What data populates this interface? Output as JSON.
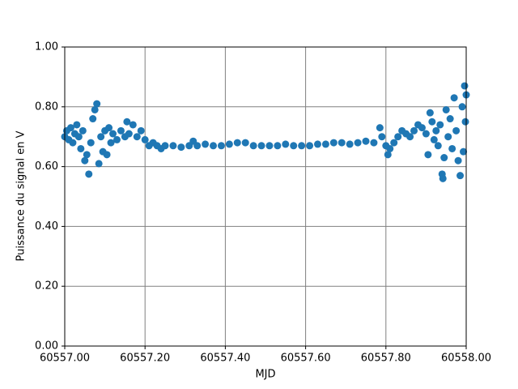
{
  "chart_data": {
    "type": "scatter",
    "xlabel": "MJD",
    "ylabel": "Puissance du signal en V",
    "color": "#1f77b4",
    "grid": true,
    "xlim": [
      60557.0,
      60558.0
    ],
    "xticks": [
      {
        "value": 60557.0,
        "label": "60557.00"
      },
      {
        "value": 60557.2,
        "label": "60557.20"
      },
      {
        "value": 60557.4,
        "label": "60557.40"
      },
      {
        "value": 60557.6,
        "label": "60557.60"
      },
      {
        "value": 60557.8,
        "label": "60557.80"
      },
      {
        "value": 60558.0,
        "label": "60558.00"
      }
    ],
    "ylim": [
      0,
      1
    ],
    "yticks": [
      {
        "value": 0,
        "label": "0.00"
      },
      {
        "value": 0.2,
        "label": "0.20"
      },
      {
        "value": 0.4,
        "label": "0.40"
      },
      {
        "value": 0.6,
        "label": "0.60"
      },
      {
        "value": 0.8,
        "label": "0.80"
      },
      {
        "value": 1,
        "label": "1.00"
      }
    ],
    "x": [
      60557.0,
      60557.005,
      60557.01,
      60557.015,
      60557.02,
      60557.025,
      60557.03,
      60557.035,
      60557.04,
      60557.045,
      60557.05,
      60557.055,
      60557.06,
      60557.065,
      60557.07,
      60557.075,
      60557.08,
      60557.085,
      60557.09,
      60557.095,
      60557.1,
      60557.105,
      60557.11,
      60557.115,
      60557.12,
      60557.13,
      60557.14,
      60557.15,
      60557.155,
      60557.16,
      60557.17,
      60557.18,
      60557.19,
      60557.2,
      60557.21,
      60557.22,
      60557.23,
      60557.24,
      60557.25,
      60557.27,
      60557.29,
      60557.31,
      60557.32,
      60557.33,
      60557.35,
      60557.37,
      60557.39,
      60557.41,
      60557.43,
      60557.45,
      60557.47,
      60557.49,
      60557.51,
      60557.53,
      60557.55,
      60557.57,
      60557.59,
      60557.61,
      60557.63,
      60557.65,
      60557.67,
      60557.69,
      60557.71,
      60557.73,
      60557.75,
      60557.77,
      60557.785,
      60557.79,
      60557.8,
      60557.805,
      60557.81,
      60557.82,
      60557.83,
      60557.84,
      60557.85,
      60557.86,
      60557.87,
      60557.88,
      60557.89,
      60557.9,
      60557.905,
      60557.91,
      60557.915,
      60557.92,
      60557.925,
      60557.93,
      60557.935,
      60557.94,
      60557.942,
      60557.945,
      60557.95,
      60557.955,
      60557.96,
      60557.965,
      60557.97,
      60557.975,
      60557.98,
      60557.985,
      60557.99,
      60557.993,
      60557.996,
      60557.998,
      60558.0
    ],
    "values": [
      0.7,
      0.72,
      0.69,
      0.73,
      0.68,
      0.71,
      0.74,
      0.7,
      0.66,
      0.72,
      0.62,
      0.64,
      0.575,
      0.68,
      0.76,
      0.79,
      0.81,
      0.61,
      0.7,
      0.65,
      0.72,
      0.64,
      0.73,
      0.68,
      0.71,
      0.69,
      0.72,
      0.7,
      0.75,
      0.71,
      0.74,
      0.7,
      0.72,
      0.69,
      0.67,
      0.68,
      0.67,
      0.66,
      0.67,
      0.67,
      0.665,
      0.67,
      0.685,
      0.67,
      0.675,
      0.67,
      0.67,
      0.675,
      0.68,
      0.68,
      0.67,
      0.67,
      0.67,
      0.67,
      0.675,
      0.67,
      0.67,
      0.67,
      0.675,
      0.675,
      0.68,
      0.68,
      0.675,
      0.68,
      0.685,
      0.68,
      0.73,
      0.7,
      0.67,
      0.64,
      0.66,
      0.68,
      0.7,
      0.72,
      0.71,
      0.7,
      0.72,
      0.74,
      0.73,
      0.71,
      0.64,
      0.78,
      0.75,
      0.69,
      0.72,
      0.67,
      0.74,
      0.575,
      0.56,
      0.63,
      0.79,
      0.7,
      0.76,
      0.66,
      0.83,
      0.72,
      0.62,
      0.57,
      0.8,
      0.65,
      0.87,
      0.75,
      0.84
    ]
  }
}
